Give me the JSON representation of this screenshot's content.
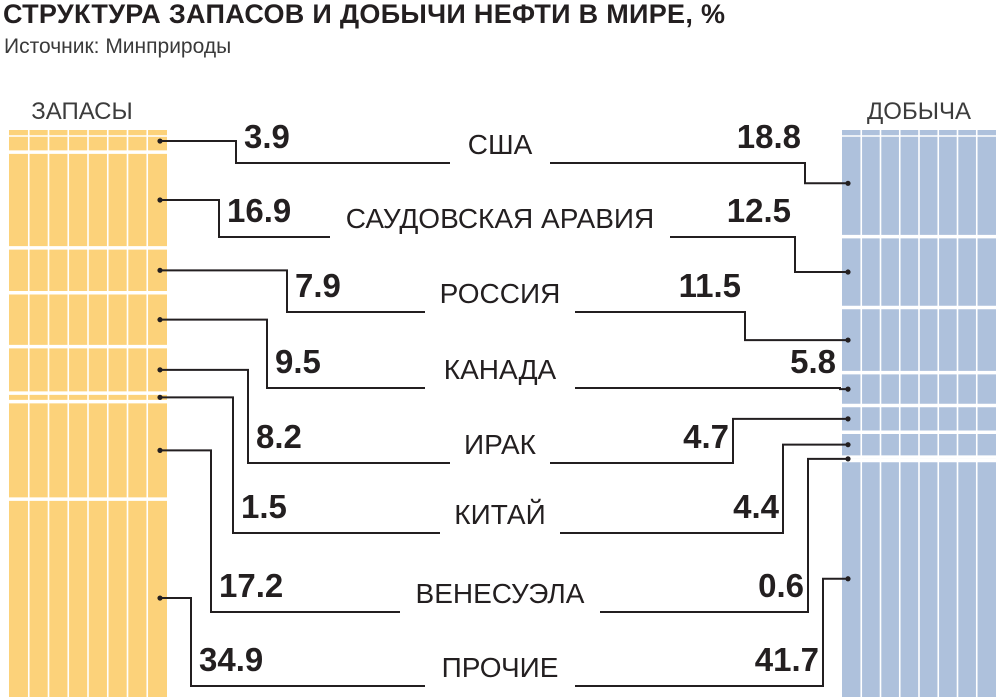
{
  "title": "СТРУКТУРА ЗАПАСОВ И ДОБЫЧИ НЕФТИ В МИРЕ, %",
  "subtitle": "Источник: Минприроды",
  "colors": {
    "reserves": "#fcd27a",
    "production": "#aec1dc",
    "divider": "#ffffff",
    "line": "#231f20"
  },
  "chart_data": {
    "type": "bar",
    "title": "СТРУКТУРА ЗАПАСОВ И ДОБЫЧИ НЕФТИ В МИРЕ, %",
    "source": "Источник: Минприроды",
    "unit": "%",
    "categories": [
      "США",
      "САУДОВСКАЯ АРАВИЯ",
      "РОССИЯ",
      "КАНАДА",
      "ИРАК",
      "КИТАЙ",
      "ВЕНЕСУЭЛА",
      "ПРОЧИЕ"
    ],
    "series": [
      {
        "name": "ЗАПАСЫ",
        "values": [
          3.9,
          16.9,
          7.9,
          9.5,
          8.2,
          1.5,
          17.2,
          34.9
        ]
      },
      {
        "name": "ДОБЫЧА",
        "values": [
          18.8,
          12.5,
          11.5,
          5.8,
          4.7,
          4.4,
          0.6,
          41.7
        ]
      }
    ],
    "stacked": true
  }
}
